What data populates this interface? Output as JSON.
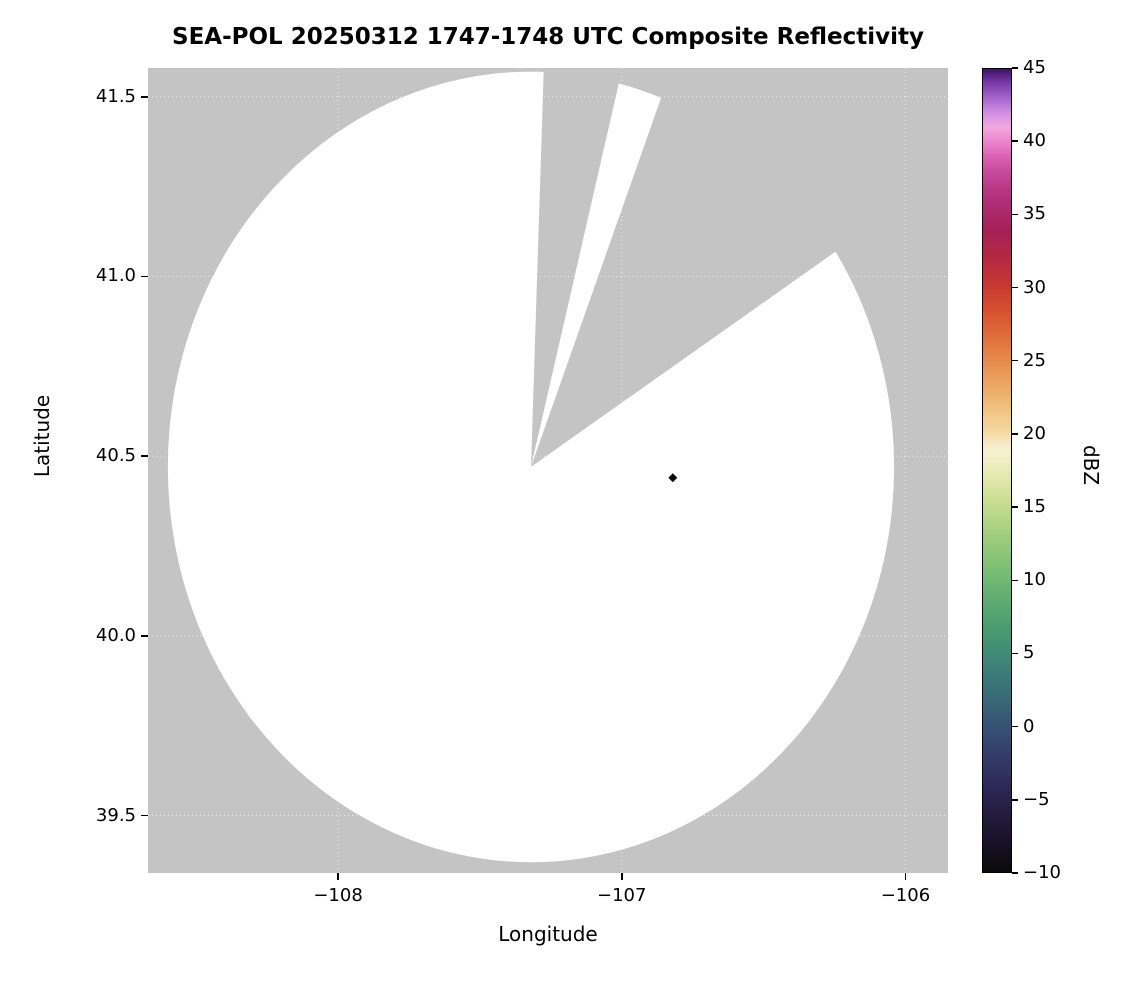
{
  "chart_data": {
    "type": "heatmap",
    "title": "SEA-POL 20250312 1747-1748 UTC Composite Reflectivity",
    "xlabel": "Longitude",
    "ylabel": "Latitude",
    "xlim": [
      -108.67,
      -105.85
    ],
    "ylim": [
      39.34,
      41.58
    ],
    "xticks": [
      {
        "value": -108,
        "label": "−108"
      },
      {
        "value": -107,
        "label": "−107"
      },
      {
        "value": -106,
        "label": "−106"
      }
    ],
    "yticks": [
      {
        "value": 39.5,
        "label": "39.5"
      },
      {
        "value": 40.0,
        "label": "40.0"
      },
      {
        "value": 40.5,
        "label": "40.5"
      },
      {
        "value": 41.0,
        "label": "41.0"
      },
      {
        "value": 41.5,
        "label": "41.5"
      }
    ],
    "grid": true,
    "gridline_color": "rgba(255,255,255,0.7)",
    "background_nodata_color": "#c4c4c4",
    "coverage_color": "#ffffff",
    "radar": {
      "center_lon": -107.32,
      "center_lat": 40.47,
      "range_radius_deg_lon": 1.28,
      "range_radius_deg_lat": 1.1,
      "blocked_sectors_azimuth_deg": [
        [
          2,
          14
        ],
        [
          21,
          57
        ]
      ]
    },
    "marker": {
      "lon": -106.82,
      "lat": 40.44,
      "shape": "diamond",
      "color": "#0a0a0a"
    },
    "colorbar": {
      "label": "dBZ",
      "min": -10,
      "max": 45,
      "ticks": [
        {
          "value": 45,
          "label": "45"
        },
        {
          "value": 40,
          "label": "40"
        },
        {
          "value": 35,
          "label": "35"
        },
        {
          "value": 30,
          "label": "30"
        },
        {
          "value": 25,
          "label": "25"
        },
        {
          "value": 20,
          "label": "20"
        },
        {
          "value": 15,
          "label": "15"
        },
        {
          "value": 10,
          "label": "10"
        },
        {
          "value": 5,
          "label": "5"
        },
        {
          "value": 0,
          "label": "0"
        },
        {
          "value": -5,
          "label": "−5"
        },
        {
          "value": -10,
          "label": "−10"
        }
      ],
      "stops": [
        [
          -10,
          "#0a0a0a"
        ],
        [
          -8,
          "#191127"
        ],
        [
          -6,
          "#241b3e"
        ],
        [
          -4,
          "#2d2a58"
        ],
        [
          -2,
          "#333d69"
        ],
        [
          0,
          "#365372"
        ],
        [
          2,
          "#386a78"
        ],
        [
          4,
          "#3c8078"
        ],
        [
          6,
          "#459572"
        ],
        [
          8,
          "#57a771"
        ],
        [
          10,
          "#70b873"
        ],
        [
          12,
          "#8fc778"
        ],
        [
          14,
          "#b2d583"
        ],
        [
          16,
          "#d5e19a"
        ],
        [
          18,
          "#efeec2"
        ],
        [
          19,
          "#f6f0d2"
        ],
        [
          20,
          "#f4dca6"
        ],
        [
          22,
          "#f0bd7a"
        ],
        [
          24,
          "#ea9c58"
        ],
        [
          26,
          "#e37a40"
        ],
        [
          28,
          "#d95732"
        ],
        [
          30,
          "#c93a2f"
        ],
        [
          32,
          "#b42940"
        ],
        [
          34,
          "#a52158"
        ],
        [
          36,
          "#b02e78"
        ],
        [
          38,
          "#c84a9c"
        ],
        [
          39,
          "#da62b4"
        ],
        [
          40,
          "#eb84cc"
        ],
        [
          41,
          "#f3a8de"
        ],
        [
          42,
          "#d08fe2"
        ],
        [
          43,
          "#a665cb"
        ],
        [
          44,
          "#7b3dac"
        ],
        [
          45,
          "#3c1365"
        ]
      ]
    }
  }
}
